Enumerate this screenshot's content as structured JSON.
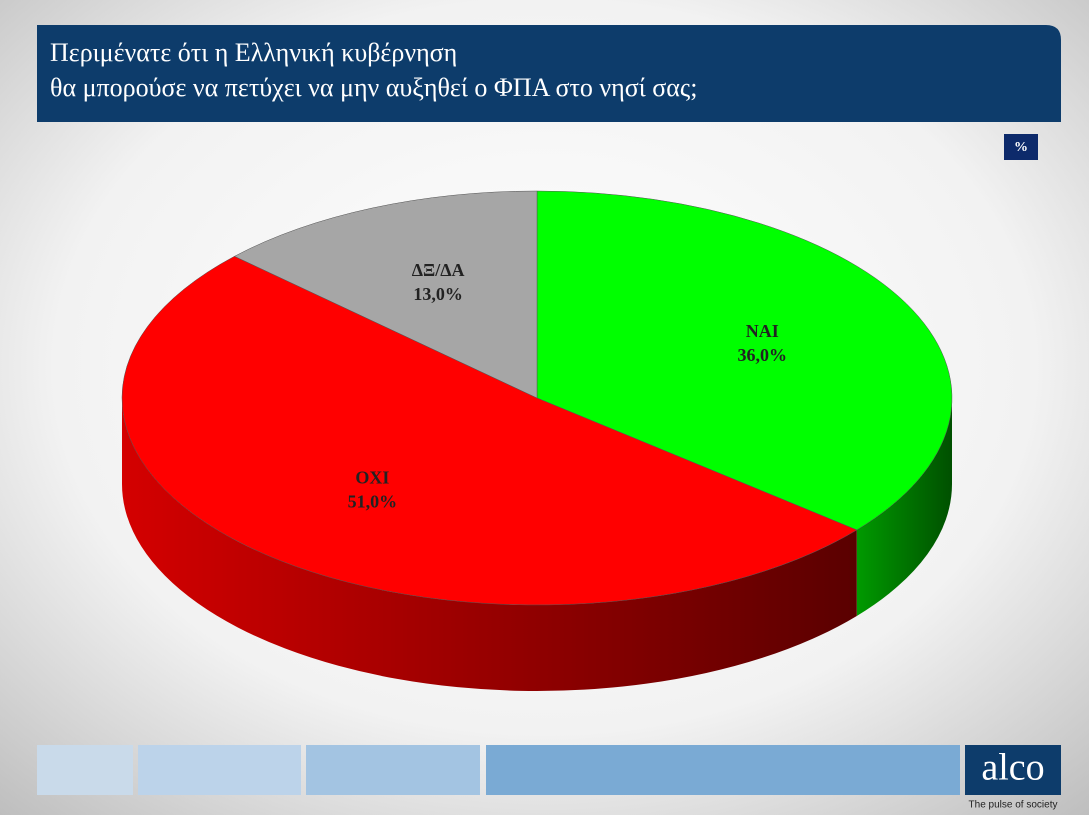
{
  "chart_data": {
    "type": "pie",
    "title": [
      "Περιμένατε ότι η Ελληνική κυβέρνηση",
      "θα μπορούσε να πετύχει να μην αυξηθεί ο ΦΠΑ στο νησί σας;"
    ],
    "unit": "%",
    "categories": [
      "ΝΑΙ",
      "ΟΧΙ",
      "ΔΞ/ΔΑ"
    ],
    "values": [
      36,
      51,
      13
    ],
    "value_labels": [
      "36,0%",
      "51,0%",
      "13,0%"
    ],
    "colors": [
      "#00ff00",
      "#ff0000",
      "#a6a6a6"
    ]
  },
  "logo": {
    "text": "alco",
    "tagline": "The pulse of society"
  }
}
